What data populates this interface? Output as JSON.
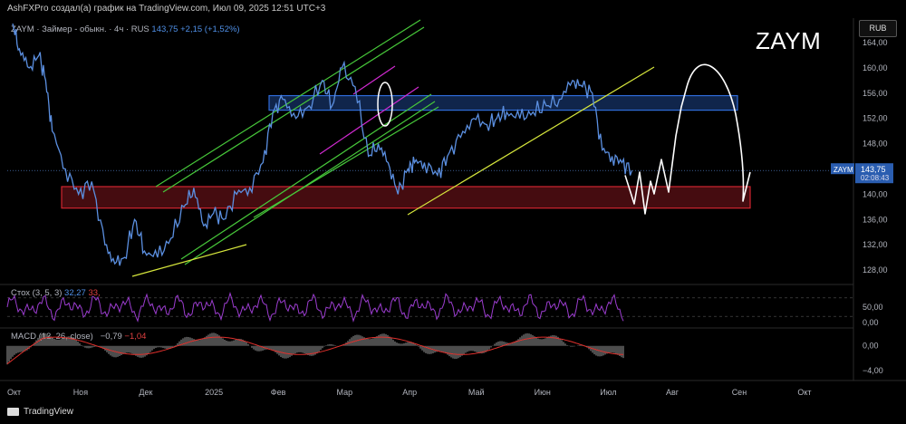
{
  "header": {
    "attribution": "AshFXPro создал(а) график на TradingView.com, Июл 09, 2025 12:51 UTC+3"
  },
  "legend": {
    "symbol_line": "ZAYM · Займер - обыкн. · 4ч · RUS",
    "last_value": "143,75",
    "change": "+2,15 (+1,52%)"
  },
  "annotation_text": "ZAYM",
  "currency_button": "RUB",
  "price_tag": {
    "symbol": "ZAYM",
    "price": "143,75",
    "countdown": "02:08:43"
  },
  "stoch_label": {
    "name": "Стох (3, 5, 3)",
    "k": "32,27",
    "d": "33,"
  },
  "macd_label": {
    "name": "MACD (12, 26, close)",
    "macd": "−0,79",
    "signal": "−1,04"
  },
  "footer": {
    "brand": "TradingView"
  },
  "colors": {
    "price_line": "#5b8fe0",
    "channel": "#47c83a",
    "trendline": "#d6e63c",
    "magenta_line": "#d22ad2",
    "blue_zone": "#2f6bd8",
    "red_zone": "#d02530",
    "stoch": "#9c3dd0",
    "macd_bar": "#9a9a9a",
    "macd_signal": "#e0302c",
    "annotation": "#ffffff"
  },
  "chart_data": {
    "type": "line",
    "y_axis": {
      "ticks": [
        "164,00",
        "160,00",
        "156,00",
        "152,00",
        "148,00",
        "144,00",
        "140,00",
        "136,00",
        "132,00",
        "128,00"
      ],
      "ylim": [
        126,
        165
      ]
    },
    "x_axis": {
      "ticks": [
        "Окт",
        "Ноя",
        "Дек",
        "2025",
        "Фев",
        "Мар",
        "Апр",
        "Май",
        "Июн",
        "Июл",
        "Авг",
        "Сен",
        "Окт"
      ],
      "positions": [
        0,
        1,
        2,
        3,
        4,
        5,
        6,
        7,
        8,
        9,
        10,
        11,
        12
      ]
    },
    "series": [
      {
        "x": [
          0,
          0.1,
          0.25,
          0.4,
          0.5,
          0.6,
          0.8,
          1.0,
          1.2,
          1.4,
          1.55,
          1.7,
          1.85,
          2.0,
          2.2,
          2.4,
          2.6,
          2.75,
          2.9,
          3.05,
          3.2,
          3.4,
          3.6,
          3.8,
          3.95,
          4.1,
          4.3,
          4.5,
          4.7,
          4.85,
          5.0,
          5.2,
          5.4,
          5.55,
          5.7,
          5.85,
          6.0,
          6.1,
          6.25,
          6.45,
          6.6,
          6.8,
          7.0,
          7.2,
          7.35,
          7.5,
          7.7,
          7.9,
          8.1,
          8.3,
          8.5,
          8.65,
          8.8,
          8.95,
          9.1,
          9.25,
          9.4
        ],
        "values": [
          167,
          163,
          160,
          162,
          158,
          150,
          144,
          140,
          142,
          132,
          129,
          130,
          136,
          131,
          130,
          133,
          138,
          141,
          135,
          137,
          136,
          140,
          141,
          145,
          153,
          155,
          152,
          154,
          158,
          154,
          160,
          157,
          146,
          148,
          145,
          140,
          144,
          145,
          145,
          143,
          146,
          149,
          152,
          151,
          152,
          153,
          152,
          153,
          154,
          155,
          158,
          157,
          156,
          147,
          146,
          145,
          143.75
        ]
      }
    ],
    "stoch": {
      "ylim": [
        0,
        100
      ],
      "ticks": [
        "50,00",
        "0,00"
      ],
      "k_last": 32.27
    },
    "macd": {
      "ticks": [
        "0,00",
        "−4,00"
      ],
      "ylim": [
        -5,
        2
      ],
      "macd_last": -0.79,
      "signal_last": -1.04
    }
  }
}
